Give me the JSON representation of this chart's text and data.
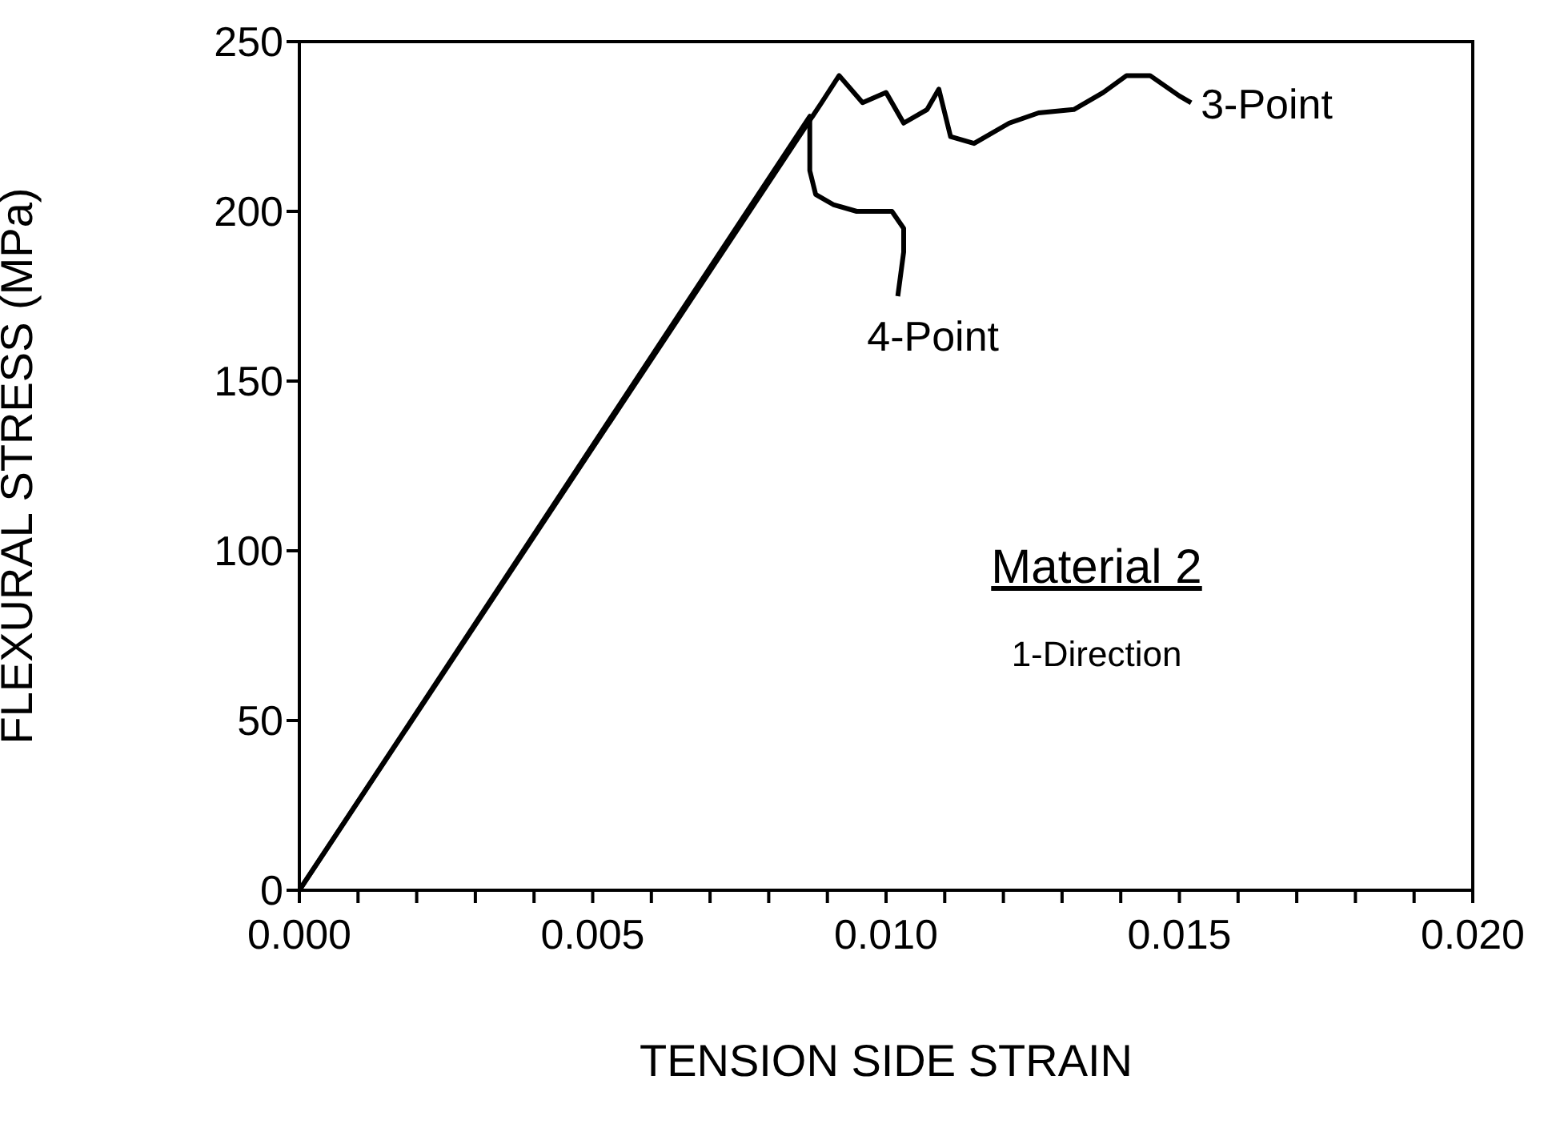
{
  "chart_data": {
    "type": "line",
    "xlabel": "TENSION SIDE STRAIN",
    "ylabel": "FLEXURAL STRESS (MPa)",
    "annotations": [
      "Material 2",
      "1-Direction"
    ],
    "xlim": [
      0,
      0.02
    ],
    "ylim": [
      0,
      250
    ],
    "xticks": [
      {
        "value": 0,
        "label": "0.000"
      },
      {
        "value": 0.001,
        "label": null
      },
      {
        "value": 0.002,
        "label": null
      },
      {
        "value": 0.003,
        "label": null
      },
      {
        "value": 0.004,
        "label": null
      },
      {
        "value": 0.005,
        "label": "0.005"
      },
      {
        "value": 0.006,
        "label": null
      },
      {
        "value": 0.007,
        "label": null
      },
      {
        "value": 0.008,
        "label": null
      },
      {
        "value": 0.009,
        "label": null
      },
      {
        "value": 0.01,
        "label": "0.010"
      },
      {
        "value": 0.011,
        "label": null
      },
      {
        "value": 0.012,
        "label": null
      },
      {
        "value": 0.013,
        "label": null
      },
      {
        "value": 0.014,
        "label": null
      },
      {
        "value": 0.015,
        "label": "0.015"
      },
      {
        "value": 0.016,
        "label": null
      },
      {
        "value": 0.017,
        "label": null
      },
      {
        "value": 0.018,
        "label": null
      },
      {
        "value": 0.019,
        "label": null
      },
      {
        "value": 0.02,
        "label": "0.020"
      }
    ],
    "yticks": [
      0,
      50,
      100,
      150,
      200,
      250
    ],
    "marker": "none",
    "line_style": "solid",
    "series": [
      {
        "name": "3-Point",
        "color": "#000000",
        "x": [
          0,
          0.0089,
          0.0092,
          0.0096,
          0.01,
          0.0103,
          0.0107,
          0.0109,
          0.0111,
          0.0115,
          0.0121,
          0.0126,
          0.0132,
          0.0137,
          0.0141,
          0.0145,
          0.015,
          0.0152
        ],
        "values": [
          0,
          232,
          240,
          232,
          235,
          226,
          230,
          236,
          222,
          220,
          226,
          229,
          230,
          235,
          240,
          240,
          234,
          232
        ]
      },
      {
        "name": "4-Point",
        "color": "#000000",
        "x": [
          0,
          0.0087,
          0.0087,
          0.0088,
          0.0091,
          0.0095,
          0.0101,
          0.0103,
          0.0103,
          0.0102
        ],
        "values": [
          0,
          228,
          212,
          205,
          202,
          200,
          200,
          195,
          188,
          175
        ]
      }
    ]
  }
}
